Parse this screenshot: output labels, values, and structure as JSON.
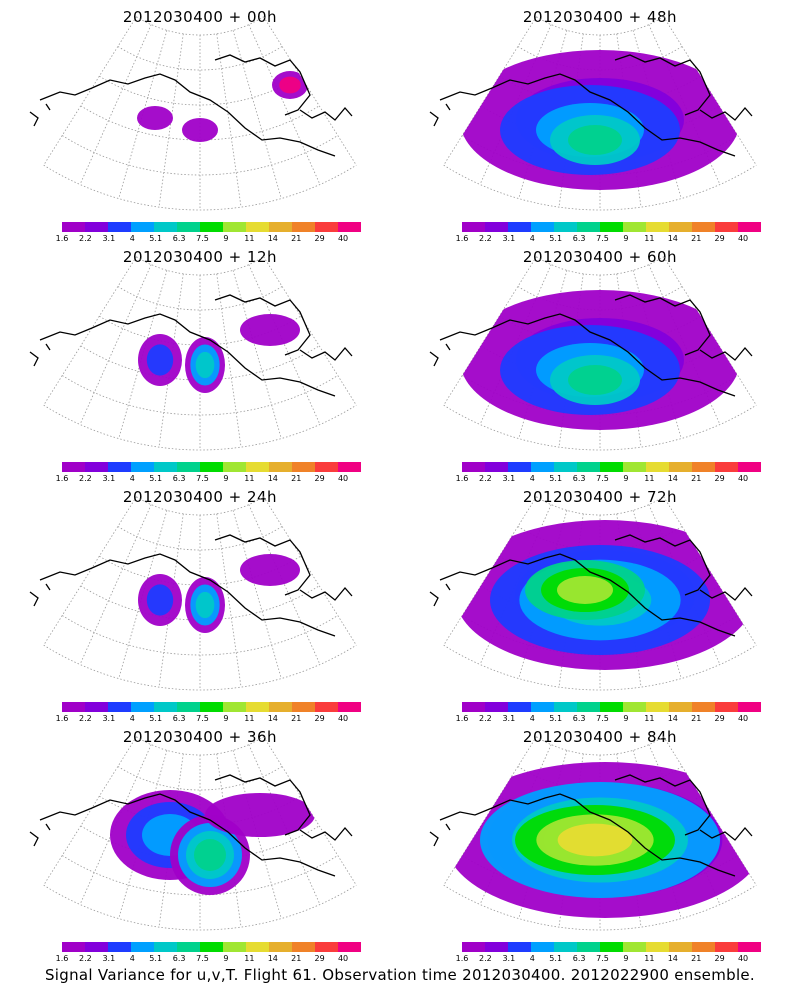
{
  "panels": [
    {
      "title": "2012030400 + 00h",
      "level": 0
    },
    {
      "title": "2012030400 + 48h",
      "level": 3
    },
    {
      "title": "2012030400 + 12h",
      "level": 1
    },
    {
      "title": "2012030400 + 60h",
      "level": 3
    },
    {
      "title": "2012030400 + 24h",
      "level": 1
    },
    {
      "title": "2012030400 + 72h",
      "level": 4
    },
    {
      "title": "2012030400 + 36h",
      "level": 2
    },
    {
      "title": "2012030400 + 84h",
      "level": 5
    }
  ],
  "colorbar": {
    "labels": [
      "1.6",
      "2.2",
      "3.1",
      "4",
      "5.1",
      "6.3",
      "7.5",
      "9",
      "11",
      "14",
      "21",
      "29",
      "40"
    ],
    "colors": [
      "#a000c8",
      "#8200dc",
      "#1e3cff",
      "#00a0ff",
      "#00c8c8",
      "#00d28c",
      "#00dc00",
      "#a0e632",
      "#e6dc32",
      "#e6af2d",
      "#f08228",
      "#fa3c3c",
      "#f00082"
    ]
  },
  "caption": "Signal Variance for u,v,T. Flight 61. Observation time 2012030400. 2012022900 ensemble."
}
